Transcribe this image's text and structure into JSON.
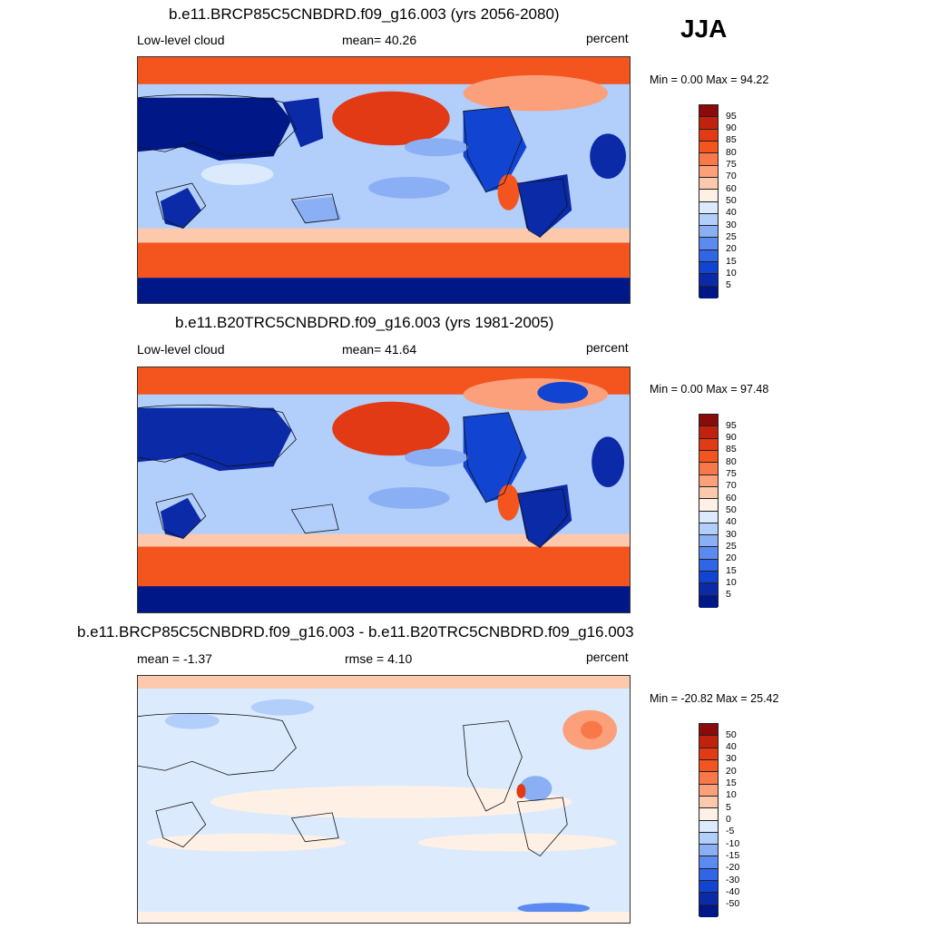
{
  "season": "JJA",
  "panels": [
    {
      "title": "b.e11.BRCP85C5CNBDRD.f09_g16.003 (yrs 2056-2080)",
      "left_label": "Low-level cloud",
      "center_label": "mean=  40.26",
      "units": "percent",
      "minmax": "Min =    0.00 Max =  94.22",
      "colorbar": {
        "levels": [
          "95",
          "90",
          "85",
          "80",
          "75",
          "70",
          "60",
          "50",
          "40",
          "30",
          "25",
          "20",
          "15",
          "10",
          "5"
        ],
        "colors": [
          "#8b0a0a",
          "#c0220e",
          "#e23a14",
          "#f4551f",
          "#f9784a",
          "#fba07a",
          "#fcc9ad",
          "#fff0e6",
          "#dbeafd",
          "#b2cefa",
          "#8aaff5",
          "#5b8af0",
          "#3066e6",
          "#1244d2",
          "#0a2aa8",
          "#001887"
        ]
      }
    },
    {
      "title": "b.e11.B20TRC5CNBDRD.f09_g16.003 (yrs 1981-2005)",
      "left_label": "Low-level cloud",
      "center_label": "mean=  41.64",
      "units": "percent",
      "minmax": "Min =    0.00 Max =  97.48",
      "colorbar": {
        "levels": [
          "95",
          "90",
          "85",
          "80",
          "75",
          "70",
          "60",
          "50",
          "40",
          "30",
          "25",
          "20",
          "15",
          "10",
          "5"
        ],
        "colors": [
          "#8b0a0a",
          "#c0220e",
          "#e23a14",
          "#f4551f",
          "#f9784a",
          "#fba07a",
          "#fcc9ad",
          "#fff0e6",
          "#dbeafd",
          "#b2cefa",
          "#8aaff5",
          "#5b8af0",
          "#3066e6",
          "#1244d2",
          "#0a2aa8",
          "#001887"
        ]
      }
    },
    {
      "title": "b.e11.BRCP85C5CNBDRD.f09_g16.003 - b.e11.B20TRC5CNBDRD.f09_g16.003",
      "left_label": "mean =  -1.37",
      "center_label": "rmse =   4.10",
      "units": "percent",
      "minmax": "Min = -20.82 Max =  25.42",
      "colorbar": {
        "levels": [
          "50",
          "40",
          "30",
          "20",
          "15",
          "10",
          "5",
          "0",
          "-5",
          "-10",
          "-15",
          "-20",
          "-30",
          "-40",
          "-50"
        ],
        "colors": [
          "#8b0a0a",
          "#c0220e",
          "#e23a14",
          "#f4551f",
          "#f9784a",
          "#fba07a",
          "#fcc9ad",
          "#fff0e6",
          "#dbeafd",
          "#b2cefa",
          "#8aaff5",
          "#5b8af0",
          "#3066e6",
          "#1244d2",
          "#0a2aa8",
          "#001887"
        ]
      }
    }
  ]
}
